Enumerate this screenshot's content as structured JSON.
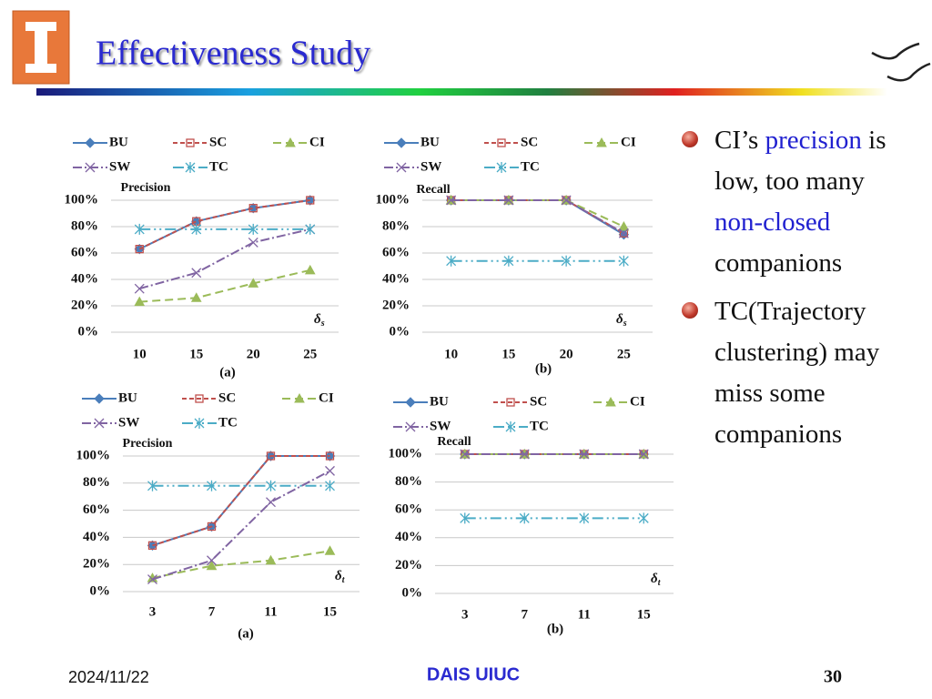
{
  "header": {
    "title": "Effectiveness Study"
  },
  "chart_data": [
    {
      "type": "line",
      "ylabel": "Precision",
      "xlabel": "δ",
      "xlabel_sub": "s",
      "caption": "(a)",
      "categories": [
        "10",
        "15",
        "20",
        "25"
      ],
      "ylim": [
        0,
        100
      ],
      "yticks": [
        {
          "value": 0,
          "label": "0%"
        },
        {
          "value": 20,
          "label": "20%"
        },
        {
          "value": 40,
          "label": "40%"
        },
        {
          "value": 60,
          "label": "60%"
        },
        {
          "value": 80,
          "label": "80%"
        },
        {
          "value": 100,
          "label": "100%"
        }
      ],
      "grid": true,
      "series": [
        {
          "name": "BU",
          "color": "#4a7ebb",
          "marker": "diamond",
          "line_style": "solid",
          "values": [
            63,
            84,
            94,
            100
          ]
        },
        {
          "name": "SC",
          "color": "#c0504d",
          "marker": "square",
          "line_style": "dashed",
          "values": [
            63,
            84,
            94,
            100
          ]
        },
        {
          "name": "CI",
          "color": "#9bbb59",
          "marker": "triangle",
          "line_style": "long-dashed",
          "values": [
            23,
            26,
            37,
            47
          ]
        },
        {
          "name": "SW",
          "color": "#8064a2",
          "marker": "x",
          "line_style": "dash-dot",
          "values": [
            33,
            45,
            68,
            78
          ]
        },
        {
          "name": "TC",
          "color": "#4bacc6",
          "marker": "star",
          "line_style": "dash-dot-dot",
          "values": [
            78,
            78,
            78,
            78
          ]
        }
      ]
    },
    {
      "type": "line",
      "ylabel": "Recall",
      "xlabel": "δ",
      "xlabel_sub": "s",
      "caption": "(b)",
      "categories": [
        "10",
        "15",
        "20",
        "25"
      ],
      "ylim": [
        0,
        100
      ],
      "yticks": [
        {
          "value": 0,
          "label": "0%"
        },
        {
          "value": 20,
          "label": "20%"
        },
        {
          "value": 40,
          "label": "40%"
        },
        {
          "value": 60,
          "label": "60%"
        },
        {
          "value": 80,
          "label": "80%"
        },
        {
          "value": 100,
          "label": "100%"
        }
      ],
      "grid": true,
      "series": [
        {
          "name": "BU",
          "color": "#4a7ebb",
          "marker": "diamond",
          "line_style": "solid",
          "values": [
            100,
            100,
            100,
            74
          ]
        },
        {
          "name": "SC",
          "color": "#c0504d",
          "marker": "square",
          "line_style": "dashed",
          "values": [
            100,
            100,
            100,
            75
          ]
        },
        {
          "name": "CI",
          "color": "#9bbb59",
          "marker": "triangle",
          "line_style": "long-dashed",
          "values": [
            100,
            100,
            100,
            80
          ]
        },
        {
          "name": "SW",
          "color": "#8064a2",
          "marker": "x",
          "line_style": "dash-dot",
          "values": [
            100,
            100,
            100,
            75
          ]
        },
        {
          "name": "TC",
          "color": "#4bacc6",
          "marker": "star",
          "line_style": "dash-dot-dot",
          "values": [
            54,
            54,
            54,
            54
          ]
        }
      ]
    },
    {
      "type": "line",
      "ylabel": "Precision",
      "xlabel": "δ",
      "xlabel_sub": "t",
      "caption": "(a)",
      "categories": [
        "3",
        "7",
        "11",
        "15"
      ],
      "ylim": [
        0,
        100
      ],
      "yticks": [
        {
          "value": 0,
          "label": "0%"
        },
        {
          "value": 20,
          "label": "20%"
        },
        {
          "value": 40,
          "label": "40%"
        },
        {
          "value": 60,
          "label": "60%"
        },
        {
          "value": 80,
          "label": "80%"
        },
        {
          "value": 100,
          "label": "100%"
        }
      ],
      "grid": true,
      "series": [
        {
          "name": "BU",
          "color": "#4a7ebb",
          "marker": "diamond",
          "line_style": "solid",
          "values": [
            34,
            48,
            100,
            100
          ]
        },
        {
          "name": "SC",
          "color": "#c0504d",
          "marker": "square",
          "line_style": "dashed",
          "values": [
            34,
            48,
            100,
            100
          ]
        },
        {
          "name": "CI",
          "color": "#9bbb59",
          "marker": "triangle",
          "line_style": "long-dashed",
          "values": [
            10,
            19,
            23,
            30
          ]
        },
        {
          "name": "SW",
          "color": "#8064a2",
          "marker": "x",
          "line_style": "dash-dot",
          "values": [
            9,
            23,
            66,
            89
          ]
        },
        {
          "name": "TC",
          "color": "#4bacc6",
          "marker": "star",
          "line_style": "dash-dot-dot",
          "values": [
            78,
            78,
            78,
            78
          ]
        }
      ]
    },
    {
      "type": "line",
      "ylabel": "Recall",
      "xlabel": "δ",
      "xlabel_sub": "t",
      "caption": "(b)",
      "categories": [
        "3",
        "7",
        "11",
        "15"
      ],
      "ylim": [
        0,
        100
      ],
      "yticks": [
        {
          "value": 0,
          "label": "0%"
        },
        {
          "value": 20,
          "label": "20%"
        },
        {
          "value": 40,
          "label": "40%"
        },
        {
          "value": 60,
          "label": "60%"
        },
        {
          "value": 80,
          "label": "80%"
        },
        {
          "value": 100,
          "label": "100%"
        }
      ],
      "grid": true,
      "series": [
        {
          "name": "BU",
          "color": "#4a7ebb",
          "marker": "diamond",
          "line_style": "solid",
          "values": [
            100,
            100,
            100,
            100
          ]
        },
        {
          "name": "SC",
          "color": "#c0504d",
          "marker": "square",
          "line_style": "dashed",
          "values": [
            100,
            100,
            100,
            100
          ]
        },
        {
          "name": "CI",
          "color": "#9bbb59",
          "marker": "triangle",
          "line_style": "long-dashed",
          "values": [
            100,
            100,
            100,
            100
          ]
        },
        {
          "name": "SW",
          "color": "#8064a2",
          "marker": "x",
          "line_style": "dash-dot",
          "values": [
            100,
            100,
            100,
            100
          ]
        },
        {
          "name": "TC",
          "color": "#4bacc6",
          "marker": "star",
          "line_style": "dash-dot-dot",
          "values": [
            54,
            54,
            54,
            54
          ]
        }
      ]
    }
  ],
  "bullets": [
    {
      "segments": [
        {
          "text": "CI’s "
        },
        {
          "text": "precision",
          "color": "#2020d0"
        },
        {
          "text": " is low, too many "
        },
        {
          "text": "non-closed",
          "color": "#2020d0"
        },
        {
          "text": " companions"
        }
      ]
    },
    {
      "segments": [
        {
          "text": "TC(Trajectory clustering) may miss some companions"
        }
      ]
    }
  ],
  "footer": {
    "date": "2024/11/22",
    "center": "DAIS UIUC",
    "page": "30"
  }
}
